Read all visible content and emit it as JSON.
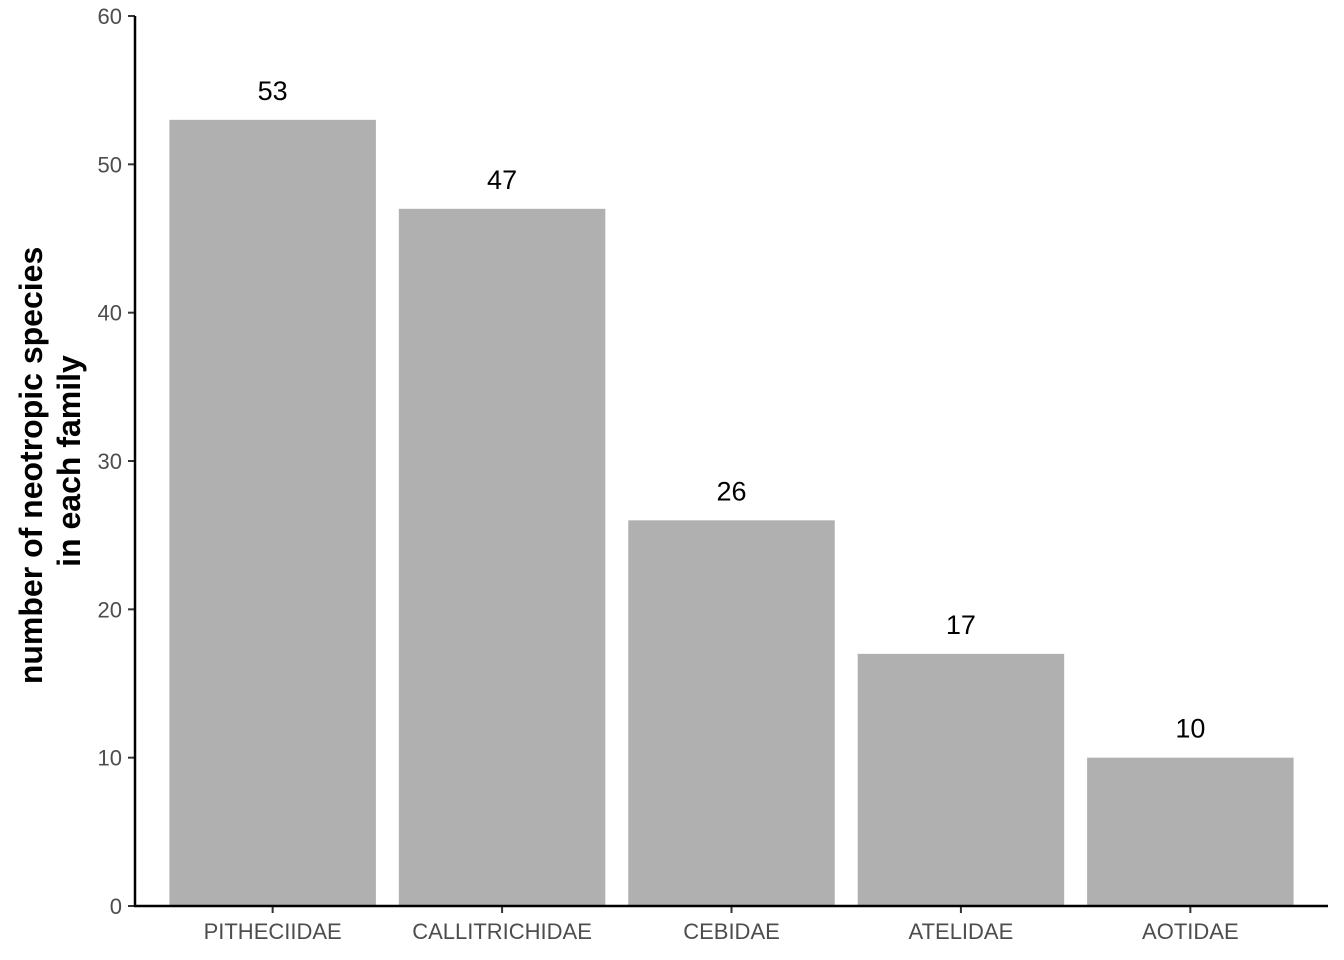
{
  "chart_data": {
    "type": "bar",
    "categories": [
      "PITHECIIDAE",
      "CALLITRICHIDAE",
      "CEBIDAE",
      "ATELIDAE",
      "AOTIDAE"
    ],
    "values": [
      53,
      47,
      26,
      17,
      10
    ],
    "data_labels": [
      "53",
      "47",
      "26",
      "17",
      "10"
    ],
    "title": "",
    "xlabel": "",
    "ylabel_lines": [
      "number of neotropic species",
      "in each family"
    ],
    "ylim": [
      0,
      60
    ],
    "yticks": [
      0,
      10,
      20,
      30,
      40,
      50,
      60
    ],
    "ytick_labels": [
      "0",
      "10",
      "20",
      "30",
      "40",
      "50",
      "60"
    ],
    "grid": false,
    "legend": "none",
    "bar_color": "#b0b0b0",
    "axis_color": "#000000"
  }
}
